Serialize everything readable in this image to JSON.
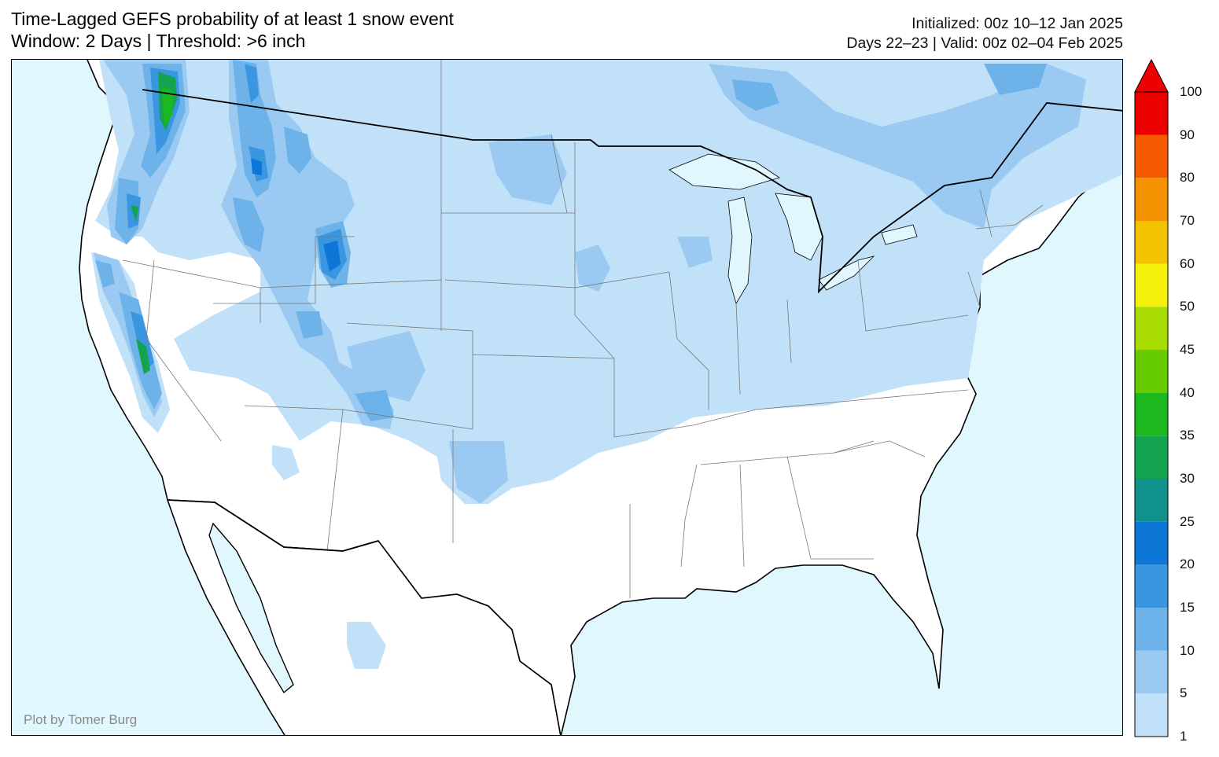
{
  "title": {
    "line1": "Time-Lagged GEFS probability of at least 1 snow event",
    "line2": "Window: 2 Days | Threshold: >6 inch"
  },
  "info": {
    "initialized": "Initialized: 00z 10–12 Jan 2025",
    "valid": "Days 22–23 | Valid: 00z 02–04 Feb 2025"
  },
  "credit": "Plot by Tomer Burg",
  "colors": {
    "ocean": "#e0f7fe",
    "land": "#ffffff",
    "lake": "#e0f7fe"
  },
  "colorbar": {
    "levels": [
      "1",
      "5",
      "10",
      "15",
      "20",
      "25",
      "30",
      "35",
      "40",
      "45",
      "50",
      "60",
      "70",
      "80",
      "90",
      "100"
    ],
    "colors": [
      "#c1e1f9",
      "#9acaf2",
      "#6db3ea",
      "#3a96e0",
      "#0d77d8",
      "#10918c",
      "#14a44f",
      "#1bb91f",
      "#66cc00",
      "#a8dc00",
      "#f4f20a",
      "#f5c200",
      "#f59200",
      "#f55a00",
      "#ec0000"
    ],
    "extend_color": "#ec0000"
  }
}
